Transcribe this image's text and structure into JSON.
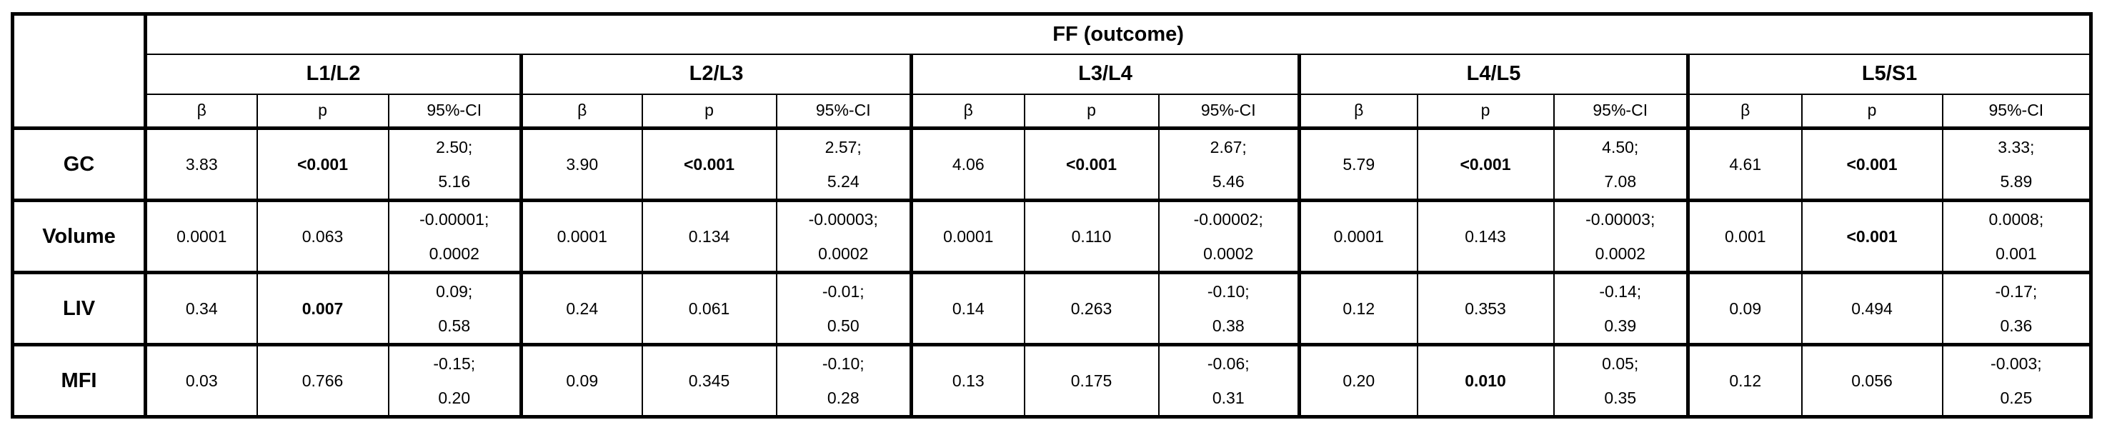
{
  "table": {
    "title": "FF (outcome)",
    "segments": [
      "L1/L2",
      "L2/L3",
      "L3/L4",
      "L4/L5",
      "L5/S1"
    ],
    "subheaders": [
      "β",
      "p",
      "95%-CI"
    ],
    "rows": [
      {
        "label": "GC",
        "cells": [
          {
            "beta": "3.83",
            "p": "<0.001",
            "p_bold": true,
            "ci": [
              "2.50;",
              "5.16"
            ]
          },
          {
            "beta": "3.90",
            "p": "<0.001",
            "p_bold": true,
            "ci": [
              "2.57;",
              "5.24"
            ]
          },
          {
            "beta": "4.06",
            "p": "<0.001",
            "p_bold": true,
            "ci": [
              "2.67;",
              "5.46"
            ]
          },
          {
            "beta": "5.79",
            "p": "<0.001",
            "p_bold": true,
            "ci": [
              "4.50;",
              "7.08"
            ]
          },
          {
            "beta": "4.61",
            "p": "<0.001",
            "p_bold": true,
            "ci": [
              "3.33;",
              "5.89"
            ]
          }
        ]
      },
      {
        "label": "Volume",
        "cells": [
          {
            "beta": "0.0001",
            "p": "0.063",
            "p_bold": false,
            "ci": [
              "-0.00001;",
              "0.0002"
            ]
          },
          {
            "beta": "0.0001",
            "p": "0.134",
            "p_bold": false,
            "ci": [
              "-0.00003;",
              "0.0002"
            ]
          },
          {
            "beta": "0.0001",
            "p": "0.110",
            "p_bold": false,
            "ci": [
              "-0.00002;",
              "0.0002"
            ]
          },
          {
            "beta": "0.0001",
            "p": "0.143",
            "p_bold": false,
            "ci": [
              "-0.00003;",
              "0.0002"
            ]
          },
          {
            "beta": "0.001",
            "p": "<0.001",
            "p_bold": true,
            "ci": [
              "0.0008;",
              "0.001"
            ]
          }
        ]
      },
      {
        "label": "LIV",
        "cells": [
          {
            "beta": "0.34",
            "p": "0.007",
            "p_bold": true,
            "ci": [
              "0.09;",
              "0.58"
            ]
          },
          {
            "beta": "0.24",
            "p": "0.061",
            "p_bold": false,
            "ci": [
              "-0.01;",
              "0.50"
            ]
          },
          {
            "beta": "0.14",
            "p": "0.263",
            "p_bold": false,
            "ci": [
              "-0.10;",
              "0.38"
            ]
          },
          {
            "beta": "0.12",
            "p": "0.353",
            "p_bold": false,
            "ci": [
              "-0.14;",
              "0.39"
            ]
          },
          {
            "beta": "0.09",
            "p": "0.494",
            "p_bold": false,
            "ci": [
              "-0.17;",
              "0.36"
            ]
          }
        ]
      },
      {
        "label": "MFI",
        "cells": [
          {
            "beta": "0.03",
            "p": "0.766",
            "p_bold": false,
            "ci": [
              "-0.15;",
              "0.20"
            ]
          },
          {
            "beta": "0.09",
            "p": "0.345",
            "p_bold": false,
            "ci": [
              "-0.10;",
              "0.28"
            ]
          },
          {
            "beta": "0.13",
            "p": "0.175",
            "p_bold": false,
            "ci": [
              "-0.06;",
              "0.31"
            ]
          },
          {
            "beta": "0.20",
            "p": "0.010",
            "p_bold": true,
            "ci": [
              "0.05;",
              "0.35"
            ]
          },
          {
            "beta": "0.12",
            "p": "0.056",
            "p_bold": false,
            "ci": [
              "-0.003;",
              "0.25"
            ]
          }
        ]
      }
    ]
  }
}
